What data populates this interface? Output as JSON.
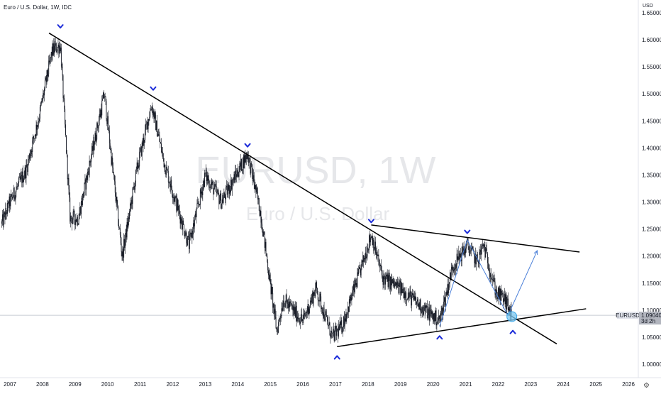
{
  "header": {
    "symbol_title": "Euro / U.S. Dollar, 1W, IDC",
    "currency": "USD"
  },
  "watermark": {
    "ticker_interval": "EURUSD, 1W",
    "name": "Euro / U.S. Dollar"
  },
  "price_tag": {
    "symbol": "EURUSD",
    "price": "1.09040",
    "countdown": "3d 2h"
  },
  "settings_icon": "gear-icon",
  "colors": {
    "background": "#ffffff",
    "candles": "#131722",
    "trendline": "#000000",
    "marker": "#1b2bd9",
    "projection": "#4a7fd8",
    "target_circle": "#7cc8f2",
    "price_line": "#c8cbd2",
    "tag_bg": "#e0e3eb"
  },
  "chart_data": {
    "type": "candlestick",
    "title": "Euro / U.S. Dollar, 1W, IDC",
    "x_axis": {
      "labels": [
        "2007",
        "2008",
        "2009",
        "2010",
        "2011",
        "2012",
        "2013",
        "2014",
        "2015",
        "2016",
        "2017",
        "2018",
        "2019",
        "2020",
        "2021",
        "2022",
        "2023",
        "2024",
        "2025",
        "2026"
      ],
      "range": [
        2006.75,
        2026.3
      ]
    },
    "y_axis": {
      "labels": [
        "1.00000",
        "1.05000",
        "1.10000",
        "1.15000",
        "1.20000",
        "1.25000",
        "1.30000",
        "1.35000",
        "1.40000",
        "1.45000",
        "1.50000",
        "1.55000",
        "1.60000",
        "1.65000"
      ],
      "range": [
        0.99,
        1.66
      ],
      "unit": "USD",
      "position": "right"
    },
    "price_keypoints": [
      {
        "t": 2006.75,
        "p": 1.26
      },
      {
        "t": 2007.0,
        "p": 1.3
      },
      {
        "t": 2007.5,
        "p": 1.36
      },
      {
        "t": 2007.9,
        "p": 1.46
      },
      {
        "t": 2008.3,
        "p": 1.58
      },
      {
        "t": 2008.55,
        "p": 1.59
      },
      {
        "t": 2008.85,
        "p": 1.27
      },
      {
        "t": 2009.1,
        "p": 1.27
      },
      {
        "t": 2009.9,
        "p": 1.5
      },
      {
        "t": 2010.45,
        "p": 1.2
      },
      {
        "t": 2010.9,
        "p": 1.36
      },
      {
        "t": 2011.35,
        "p": 1.48
      },
      {
        "t": 2011.75,
        "p": 1.37
      },
      {
        "t": 2012.5,
        "p": 1.22
      },
      {
        "t": 2013.0,
        "p": 1.35
      },
      {
        "t": 2013.5,
        "p": 1.3
      },
      {
        "t": 2014.3,
        "p": 1.39
      },
      {
        "t": 2014.7,
        "p": 1.28
      },
      {
        "t": 2015.2,
        "p": 1.06
      },
      {
        "t": 2015.4,
        "p": 1.12
      },
      {
        "t": 2016.0,
        "p": 1.08
      },
      {
        "t": 2016.4,
        "p": 1.14
      },
      {
        "t": 2016.9,
        "p": 1.05
      },
      {
        "t": 2017.2,
        "p": 1.07
      },
      {
        "t": 2017.8,
        "p": 1.18
      },
      {
        "t": 2018.1,
        "p": 1.24
      },
      {
        "t": 2018.45,
        "p": 1.16
      },
      {
        "t": 2019.0,
        "p": 1.14
      },
      {
        "t": 2019.75,
        "p": 1.1
      },
      {
        "t": 2020.2,
        "p": 1.08
      },
      {
        "t": 2020.6,
        "p": 1.18
      },
      {
        "t": 2021.05,
        "p": 1.22
      },
      {
        "t": 2021.35,
        "p": 1.19
      },
      {
        "t": 2021.55,
        "p": 1.22
      },
      {
        "t": 2021.95,
        "p": 1.13
      },
      {
        "t": 2022.2,
        "p": 1.12
      },
      {
        "t": 2022.42,
        "p": 1.09
      }
    ],
    "trendlines": [
      {
        "name": "long-term resistance",
        "from": {
          "t": 2008.2,
          "p": 1.6125
        },
        "to": {
          "t": 2023.8,
          "p": 1.0375
        }
      },
      {
        "name": "upper triangle line",
        "from": {
          "t": 2018.1,
          "p": 1.2575
        },
        "to": {
          "t": 2024.5,
          "p": 1.2075
        }
      },
      {
        "name": "lower triangle line",
        "from": {
          "t": 2017.05,
          "p": 1.0325
        },
        "to": {
          "t": 2024.7,
          "p": 1.1025
        }
      }
    ],
    "projection_path": [
      {
        "t": 2020.2,
        "p": 1.07
      },
      {
        "t": 2021.05,
        "p": 1.23
      },
      {
        "t": 2022.3,
        "p": 1.09
      },
      {
        "t": 2023.2,
        "p": 1.21
      }
    ],
    "swing_markers": [
      {
        "type": "high",
        "t": 2008.55,
        "p": 1.615
      },
      {
        "type": "high",
        "t": 2011.4,
        "p": 1.5
      },
      {
        "type": "high",
        "t": 2014.3,
        "p": 1.395
      },
      {
        "type": "high",
        "t": 2018.1,
        "p": 1.255
      },
      {
        "type": "high",
        "t": 2021.05,
        "p": 1.235
      },
      {
        "type": "low",
        "t": 2017.05,
        "p": 1.025
      },
      {
        "type": "low",
        "t": 2020.2,
        "p": 1.062
      },
      {
        "type": "low",
        "t": 2022.45,
        "p": 1.072
      }
    ],
    "target_circle": {
      "t": 2022.42,
      "p": 1.088
    },
    "current_price": 1.0904
  }
}
